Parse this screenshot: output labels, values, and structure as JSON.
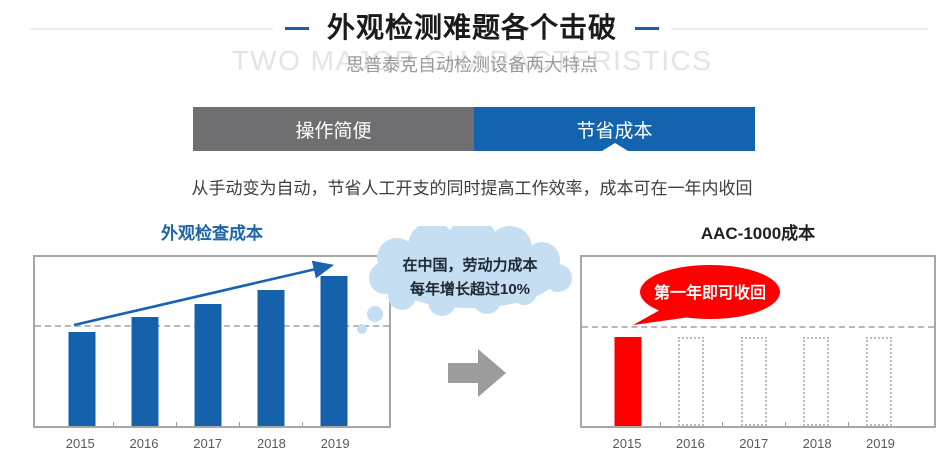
{
  "header": {
    "title": "外观检测难题各个击破",
    "subtitle": "思普泰克自动检测设备两大特点",
    "watermark": "TWO MAJOR CHARACTERISTICS"
  },
  "tabs": [
    {
      "label": "操作简便",
      "active": false
    },
    {
      "label": "节省成本",
      "active": true
    }
  ],
  "description": "从手动变为自动，节省人工开支的同时提高工作效率，成本可在一年内收回",
  "icons": {
    "between_charts": "right-arrow-icon",
    "left_chart_overlay": "trend-up-arrow-icon",
    "left_annotation_shape": "thought-cloud",
    "right_annotation_shape": "speech-ellipse"
  },
  "colors": {
    "accent_blue": "#1463af",
    "tab_gray": "#6f6f71",
    "bar_blue": "#1661ac",
    "bar_red": "#fe0000",
    "cloud_fill": "#c5def1",
    "watermark_gray": "#e4e4e4",
    "title_dash_blue": "#1b5fa9"
  },
  "chart_data": [
    {
      "type": "bar",
      "title": "外观检查成本",
      "categories": [
        "2015",
        "2016",
        "2017",
        "2018",
        "2019"
      ],
      "values": [
        100,
        116,
        130,
        145,
        160
      ],
      "ylim": [
        0,
        180
      ],
      "gridline_value": 105,
      "bar_color": "#1661ac",
      "grid": "single dashed horizontal line",
      "legend": "none",
      "xlabel": "",
      "ylabel": "",
      "note": "no y-axis shown; relative labor-cost index, 2015 = 100, rising ~10%/yr with blue trend arrow",
      "trend_arrow": true,
      "annotation": {
        "shape": "cloud",
        "lines": [
          "在中国，劳动力成本",
          "每年增长超过10%"
        ]
      }
    },
    {
      "type": "bar",
      "title": "AAC-1000成本",
      "categories": [
        "2015",
        "2016",
        "2017",
        "2018",
        "2019"
      ],
      "values": [
        100,
        0,
        0,
        0,
        0
      ],
      "placeholder_outline_values": [
        null,
        100,
        100,
        100,
        100
      ],
      "ylim": [
        0,
        190
      ],
      "gridline_value": 110,
      "bar_color": "#fe0000",
      "grid": "single dashed horizontal line",
      "legend": "none",
      "xlabel": "",
      "ylabel": "",
      "note": "solid red cost bar only in 2015; later years shown as empty dotted outlines (no cost)",
      "annotation": {
        "shape": "speech-ellipse",
        "lines": [
          "第一年即可收回"
        ]
      }
    }
  ]
}
